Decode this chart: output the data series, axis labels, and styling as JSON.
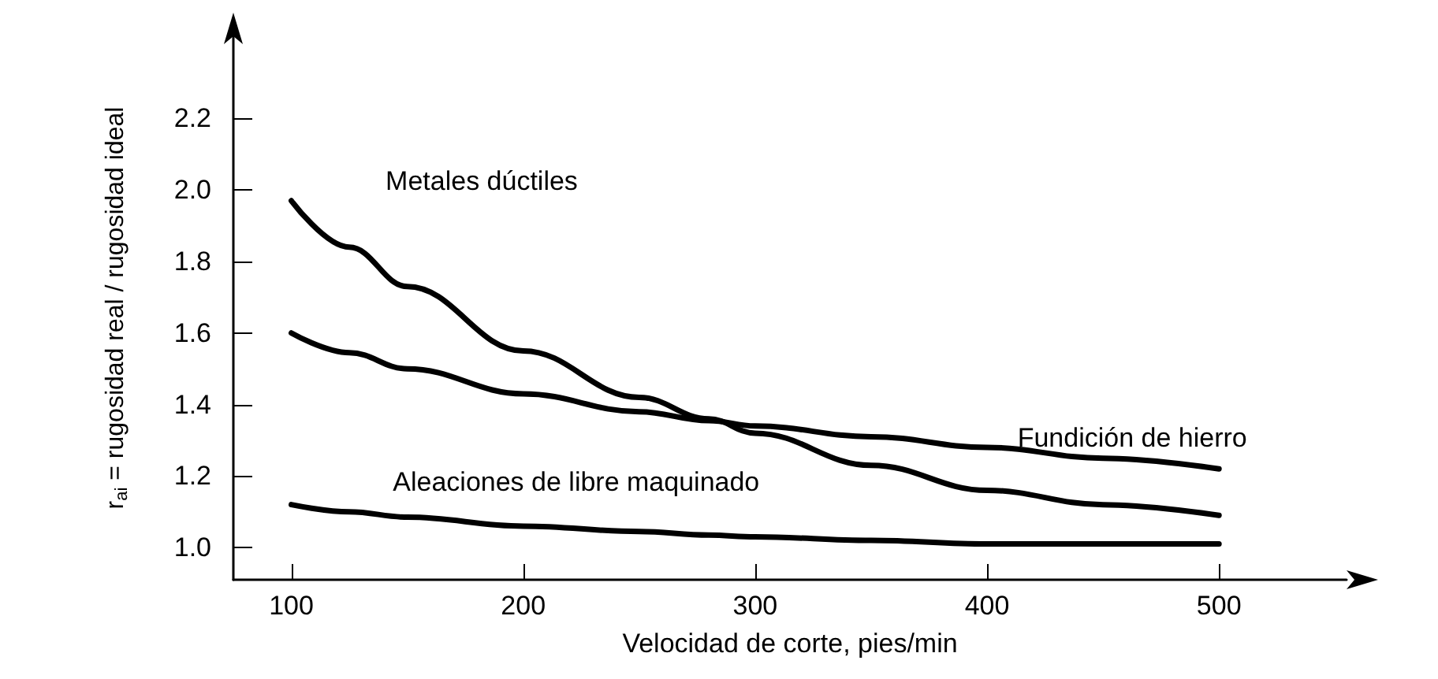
{
  "chart_data": {
    "type": "line",
    "xlabel": "Velocidad de corte, pies/min",
    "ylabel": "r$_{ai}$ = rugosidad real / rugosidad ideal",
    "x": [
      100,
      125,
      150,
      200,
      250,
      280,
      300,
      350,
      400,
      450,
      500
    ],
    "series": [
      {
        "name": "Metales dúctiles",
        "color": "#000000",
        "values": [
          1.97,
          1.84,
          1.73,
          1.55,
          1.42,
          1.36,
          1.32,
          1.23,
          1.16,
          1.12,
          1.09
        ]
      },
      {
        "name": "Fundición de hierro",
        "color": "#000000",
        "values": [
          1.6,
          1.545,
          1.5,
          1.43,
          1.38,
          1.355,
          1.34,
          1.31,
          1.28,
          1.25,
          1.22
        ]
      },
      {
        "name": "Aleaciones de libre maquinado",
        "color": "#000000",
        "values": [
          1.12,
          1.1,
          1.085,
          1.06,
          1.045,
          1.035,
          1.03,
          1.02,
          1.01,
          1.01,
          1.01
        ]
      }
    ],
    "xlim": [
      75,
      555
    ],
    "xticks": [
      100,
      200,
      300,
      400,
      500
    ],
    "ylim": [
      0.91,
      2.43
    ],
    "yticks": [
      {
        "value": 1,
        "label": "1.0"
      },
      {
        "value": 1.2,
        "label": "1.2"
      },
      {
        "value": 1.4,
        "label": "1.4"
      },
      {
        "value": 1.6,
        "label": "1.6"
      },
      {
        "value": 1.8,
        "label": "1.8"
      },
      {
        "value": 2,
        "label": "2.0"
      },
      {
        "value": 2.2,
        "label": "2.2"
      }
    ],
    "grid": false,
    "legend": false,
    "marker": "none",
    "line_style": "solid"
  }
}
